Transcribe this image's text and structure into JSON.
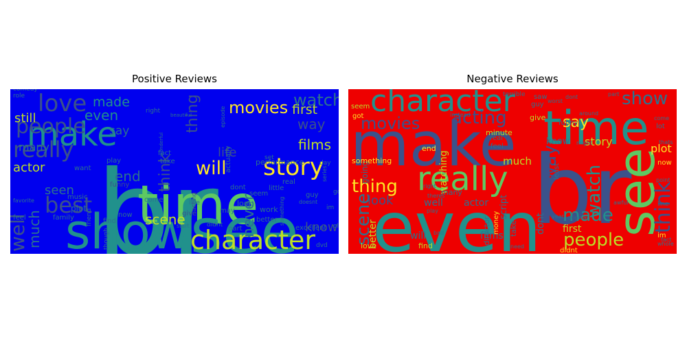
{
  "chart_data": [
    {
      "type": "wordcloud",
      "title": "Positive Reviews",
      "background": "#0000ee",
      "words": [
        {
          "text": "br",
          "color": "#21918c"
        },
        {
          "text": "time",
          "color": "#5ec962"
        },
        {
          "text": "see",
          "color": "#21918c"
        },
        {
          "text": "show",
          "color": "#21918c"
        },
        {
          "text": "character",
          "color": "#bddf26"
        },
        {
          "text": "story",
          "color": "#fde725"
        },
        {
          "text": "love",
          "color": "#3b528b"
        },
        {
          "text": "make",
          "color": "#21918c"
        },
        {
          "text": "people",
          "color": "#3b528b"
        },
        {
          "text": "really",
          "color": "#3b528b"
        },
        {
          "text": "best",
          "color": "#3b528b"
        },
        {
          "text": "movies",
          "color": "#fde725"
        },
        {
          "text": "watch",
          "color": "#2c728e"
        },
        {
          "text": "made",
          "color": "#21918c"
        },
        {
          "text": "even",
          "color": "#21918c"
        },
        {
          "text": "way",
          "color": "#3b528b"
        },
        {
          "text": "will",
          "color": "#fde725"
        },
        {
          "text": "films",
          "color": "#bddf26"
        },
        {
          "text": "first",
          "color": "#bddf26"
        },
        {
          "text": "scene",
          "color": "#bddf26"
        },
        {
          "text": "well",
          "color": "#3b528b"
        },
        {
          "text": "much",
          "color": "#2c728e"
        },
        {
          "text": "still",
          "color": "#bddf26"
        },
        {
          "text": "think",
          "color": "#3b528b"
        },
        {
          "text": "end",
          "color": "#2c728e"
        },
        {
          "text": "thing",
          "color": "#3b528b"
        },
        {
          "text": "life",
          "color": "#3b528b"
        },
        {
          "text": "never",
          "color": "#2c728e"
        },
        {
          "text": "know",
          "color": "#3b528b"
        },
        {
          "text": "actor",
          "color": "#bddf26"
        },
        {
          "text": "seen",
          "color": "#2c728e"
        },
        {
          "text": "say",
          "color": "#2c728e"
        },
        {
          "text": "many",
          "color": "#2c728e"
        },
        {
          "text": "plot",
          "color": "#2c728e"
        },
        {
          "text": "performance",
          "color": "#2c728e"
        },
        {
          "text": "funny",
          "color": "#3b528b"
        },
        {
          "text": "acting",
          "color": "#3b528b"
        },
        {
          "text": "give",
          "color": "#3b528b"
        },
        {
          "text": "family",
          "color": "#2c728e"
        },
        {
          "text": "seem",
          "color": "#2c728e"
        },
        {
          "text": "work",
          "color": "#2c728e"
        },
        {
          "text": "part",
          "color": "#2c728e"
        },
        {
          "text": "dont",
          "color": "#2c728e"
        },
        {
          "text": "excellent",
          "color": "#2c728e"
        },
        {
          "text": "dvd",
          "color": "#2c728e"
        },
        {
          "text": "look",
          "color": "#2c728e"
        },
        {
          "text": "play",
          "color": "#2c728e"
        },
        {
          "text": "come",
          "color": "#2c728e"
        },
        {
          "text": "fact",
          "color": "#2c728e"
        },
        {
          "text": "take",
          "color": "#2c728e"
        },
        {
          "text": "find",
          "color": "#2c728e"
        },
        {
          "text": "now",
          "color": "#2c728e"
        },
        {
          "text": "music",
          "color": "#2c728e"
        },
        {
          "text": "want",
          "color": "#2c728e"
        },
        {
          "text": "little",
          "color": "#2c728e"
        },
        {
          "text": "real",
          "color": "#2c728e"
        },
        {
          "text": "feel",
          "color": "#2c728e"
        },
        {
          "text": "role",
          "color": "#2c728e"
        },
        {
          "text": "comedy",
          "color": "#2c728e"
        },
        {
          "text": "better",
          "color": "#2c728e"
        },
        {
          "text": "guy",
          "color": "#2c728e"
        },
        {
          "text": "right",
          "color": "#2c728e"
        },
        {
          "text": "day",
          "color": "#2c728e"
        },
        {
          "text": "set",
          "color": "#2c728e"
        },
        {
          "text": "something",
          "color": "#2c728e"
        },
        {
          "text": "may",
          "color": "#2c728e"
        },
        {
          "text": "actually",
          "color": "#2c728e"
        },
        {
          "text": "episode",
          "color": "#2c728e"
        },
        {
          "text": "live",
          "color": "#2c728e"
        },
        {
          "text": "didnt",
          "color": "#2c728e"
        },
        {
          "text": "start",
          "color": "#2c728e"
        },
        {
          "text": "though",
          "color": "#2c728e"
        },
        {
          "text": "friend",
          "color": "#2c728e"
        },
        {
          "text": "favorite",
          "color": "#2c728e"
        },
        {
          "text": "series",
          "color": "#2c728e"
        },
        {
          "text": "old",
          "color": "#2c728e"
        },
        {
          "text": "got",
          "color": "#2c728e"
        },
        {
          "text": "im",
          "color": "#2c728e"
        },
        {
          "text": "doesnt",
          "color": "#2c728e"
        },
        {
          "text": "beautiful",
          "color": "#2c728e"
        },
        {
          "text": "wonderful",
          "color": "#2c728e"
        }
      ]
    },
    {
      "type": "wordcloud",
      "title": "Negative Reviews",
      "background": "#ee0000",
      "words": [
        {
          "text": "make",
          "color": "#3b528b"
        },
        {
          "text": "br",
          "color": "#3b528b"
        },
        {
          "text": "even",
          "color": "#21918c"
        },
        {
          "text": "time",
          "color": "#21918c"
        },
        {
          "text": "character",
          "color": "#21918c"
        },
        {
          "text": "see",
          "color": "#5ec962"
        },
        {
          "text": "really",
          "color": "#5ec962"
        },
        {
          "text": "thing",
          "color": "#fde725"
        },
        {
          "text": "movies",
          "color": "#3b528b"
        },
        {
          "text": "acting",
          "color": "#3b528b"
        },
        {
          "text": "show",
          "color": "#2c728e"
        },
        {
          "text": "think",
          "color": "#3b528b"
        },
        {
          "text": "people",
          "color": "#bddf26"
        },
        {
          "text": "made",
          "color": "#21918c"
        },
        {
          "text": "watch",
          "color": "#21918c"
        },
        {
          "text": "way",
          "color": "#3b528b"
        },
        {
          "text": "scene",
          "color": "#2c728e"
        },
        {
          "text": "say",
          "color": "#fde725"
        },
        {
          "text": "story",
          "color": "#bddf26"
        },
        {
          "text": "plot",
          "color": "#fde725"
        },
        {
          "text": "look",
          "color": "#3b528b"
        },
        {
          "text": "watching",
          "color": "#bddf26"
        },
        {
          "text": "much",
          "color": "#bddf26"
        },
        {
          "text": "first",
          "color": "#bddf26"
        },
        {
          "text": "well",
          "color": "#2c728e"
        },
        {
          "text": "actor",
          "color": "#2c728e"
        },
        {
          "text": "better",
          "color": "#bddf26"
        },
        {
          "text": "will",
          "color": "#2c728e"
        },
        {
          "text": "dont",
          "color": "#2c728e"
        },
        {
          "text": "know",
          "color": "#2c728e"
        },
        {
          "text": "give",
          "color": "#bddf26"
        },
        {
          "text": "end",
          "color": "#fde725"
        },
        {
          "text": "films",
          "color": "#2c728e"
        },
        {
          "text": "director",
          "color": "#2c728e"
        },
        {
          "text": "minute",
          "color": "#bddf26"
        },
        {
          "text": "script",
          "color": "#2c728e"
        },
        {
          "text": "many",
          "color": "#2c728e"
        },
        {
          "text": "going",
          "color": "#2c728e"
        },
        {
          "text": "something",
          "color": "#fde725"
        },
        {
          "text": "got",
          "color": "#fde725"
        },
        {
          "text": "seem",
          "color": "#bddf26"
        },
        {
          "text": "love",
          "color": "#bddf26"
        },
        {
          "text": "find",
          "color": "#bddf26"
        },
        {
          "text": "didnt",
          "color": "#fde725"
        },
        {
          "text": "im",
          "color": "#fde725"
        },
        {
          "text": "now",
          "color": "#fde725"
        },
        {
          "text": "lot",
          "color": "#2c728e"
        },
        {
          "text": "least",
          "color": "#2c728e"
        },
        {
          "text": "take",
          "color": "#2c728e"
        },
        {
          "text": "money",
          "color": "#fde725"
        },
        {
          "text": "saw",
          "color": "#2c728e"
        },
        {
          "text": "guy",
          "color": "#2c728e"
        },
        {
          "text": "funny",
          "color": "#2c728e"
        },
        {
          "text": "feel",
          "color": "#2c728e"
        },
        {
          "text": "real",
          "color": "#2c728e"
        },
        {
          "text": "play",
          "color": "#2c728e"
        },
        {
          "text": "right",
          "color": "#2c728e"
        },
        {
          "text": "original",
          "color": "#2c728e"
        },
        {
          "text": "terrible",
          "color": "#2c728e"
        },
        {
          "text": "thats",
          "color": "#2c728e"
        },
        {
          "text": "part",
          "color": "#2c728e"
        },
        {
          "text": "fact",
          "color": "#2c728e"
        },
        {
          "text": "need",
          "color": "#2c728e"
        },
        {
          "text": "year",
          "color": "#2c728e"
        },
        {
          "text": "bad",
          "color": "#2c728e"
        },
        {
          "text": "whole",
          "color": "#2c728e"
        },
        {
          "text": "line",
          "color": "#2c728e"
        },
        {
          "text": "come",
          "color": "#2c728e"
        },
        {
          "text": "might",
          "color": "#2c728e"
        },
        {
          "text": "awful",
          "color": "#2c728e"
        },
        {
          "text": "worst",
          "color": "#2c728e"
        },
        {
          "text": "theres",
          "color": "#2c728e"
        },
        {
          "text": "around",
          "color": "#2c728e"
        },
        {
          "text": "instead",
          "color": "#2c728e"
        },
        {
          "text": "dont",
          "color": "#2c728e"
        },
        {
          "text": "point",
          "color": "#2c728e"
        }
      ]
    }
  ]
}
